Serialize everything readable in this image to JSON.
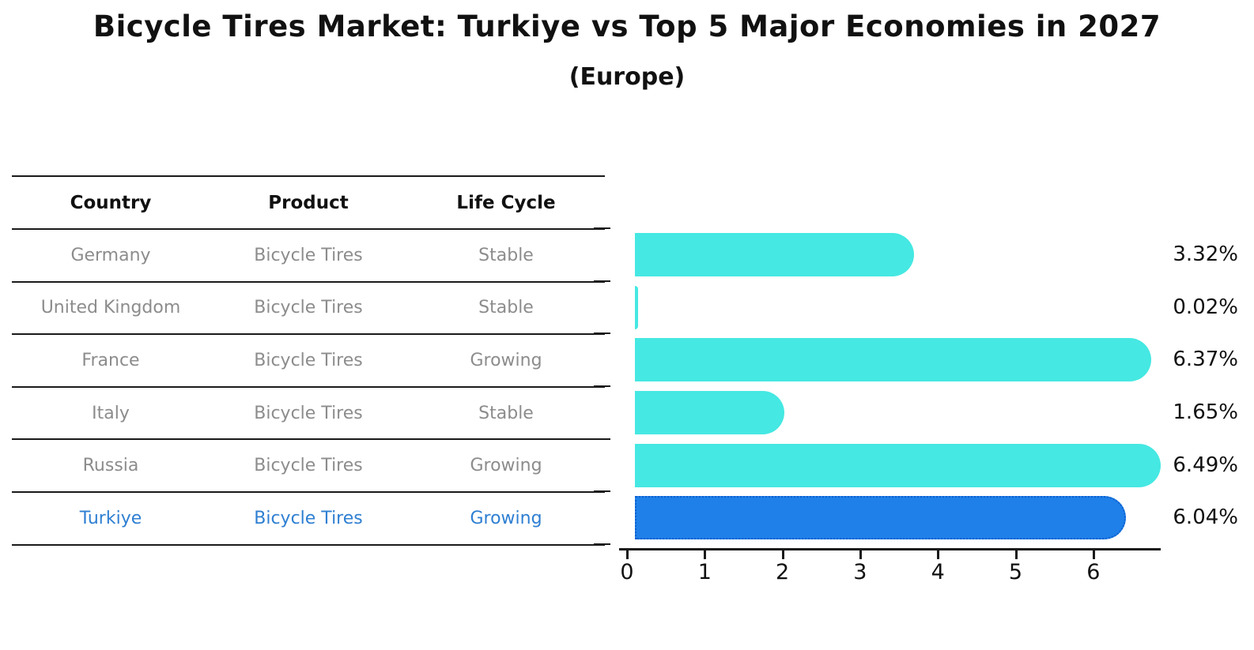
{
  "title": "Bicycle Tires Market: Turkiye vs Top 5 Major Economies in 2027",
  "subtitle": "(Europe)",
  "table": {
    "headers": {
      "country": "Country",
      "product": "Product",
      "life_cycle": "Life Cycle"
    },
    "rows": [
      {
        "country": "Germany",
        "product": "Bicycle Tires",
        "life_cycle": "Stable",
        "highlight": false
      },
      {
        "country": "United Kingdom",
        "product": "Bicycle Tires",
        "life_cycle": "Stable",
        "highlight": false
      },
      {
        "country": "France",
        "product": "Bicycle Tires",
        "life_cycle": "Growing",
        "highlight": false
      },
      {
        "country": "Italy",
        "product": "Bicycle Tires",
        "life_cycle": "Stable",
        "highlight": false
      },
      {
        "country": "Russia",
        "product": "Bicycle Tires",
        "life_cycle": "Growing",
        "highlight": false
      },
      {
        "country": "Turkiye",
        "product": "Bicycle Tires",
        "life_cycle": "Growing",
        "highlight": true
      }
    ]
  },
  "chart_data": {
    "type": "bar",
    "orientation": "horizontal",
    "title": "Bicycle Tires Market: Turkiye vs Top 5 Major Economies in 2027 (Europe)",
    "categories": [
      "Germany",
      "United Kingdom",
      "France",
      "Italy",
      "Russia",
      "Turkiye"
    ],
    "values": [
      3.32,
      0.02,
      6.37,
      1.65,
      6.49,
      6.04
    ],
    "value_labels": [
      "3.32%",
      "0.02%",
      "6.37%",
      "1.65%",
      "6.49%",
      "6.04%"
    ],
    "unit": "%",
    "x_ticks": [
      "0",
      "1",
      "2",
      "3",
      "4",
      "5",
      "6"
    ],
    "xlim": [
      0,
      6.87
    ],
    "grid": false,
    "legend": "none",
    "highlight_index": 5
  },
  "colors": {
    "bar_cyan": "#45E8E2",
    "bar_blue": "#1E80E8",
    "accent_text": "#2E7FD2",
    "text_muted": "#8C8C8C",
    "line": "#1A1A1A"
  }
}
